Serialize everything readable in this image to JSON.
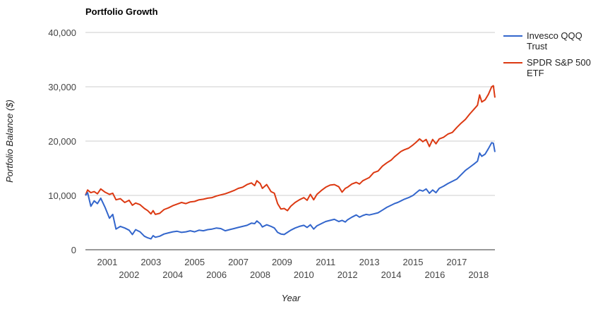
{
  "chart_data": {
    "type": "line",
    "title": "Portfolio Growth",
    "xlabel": "Year",
    "ylabel": "Portfolio Balance ($)",
    "xlim": [
      2000.0,
      2018.75
    ],
    "ylim": [
      0,
      40000
    ],
    "y_ticks": [
      {
        "value": 0,
        "label": "0"
      },
      {
        "value": 10000,
        "label": "10,000"
      },
      {
        "value": 20000,
        "label": "20,000"
      },
      {
        "value": 30000,
        "label": "30,000"
      },
      {
        "value": 40000,
        "label": "40,000"
      }
    ],
    "x_ticks": [
      {
        "value": 2001,
        "label": "2001",
        "row": 1
      },
      {
        "value": 2002,
        "label": "2002",
        "row": 2
      },
      {
        "value": 2003,
        "label": "2003",
        "row": 1
      },
      {
        "value": 2004,
        "label": "2004",
        "row": 2
      },
      {
        "value": 2005,
        "label": "2005",
        "row": 1
      },
      {
        "value": 2006,
        "label": "2006",
        "row": 2
      },
      {
        "value": 2007,
        "label": "2007",
        "row": 1
      },
      {
        "value": 2008,
        "label": "2008",
        "row": 2
      },
      {
        "value": 2009,
        "label": "2009",
        "row": 1
      },
      {
        "value": 2010,
        "label": "2010",
        "row": 2
      },
      {
        "value": 2011,
        "label": "2011",
        "row": 1
      },
      {
        "value": 2012,
        "label": "2012",
        "row": 2
      },
      {
        "value": 2013,
        "label": "2013",
        "row": 1
      },
      {
        "value": 2014,
        "label": "2014",
        "row": 2
      },
      {
        "value": 2015,
        "label": "2015",
        "row": 1
      },
      {
        "value": 2016,
        "label": "2016",
        "row": 2
      },
      {
        "value": 2017,
        "label": "2017",
        "row": 1
      },
      {
        "value": 2018,
        "label": "2018",
        "row": 2
      }
    ],
    "grid": true,
    "legend_position": "right",
    "series": [
      {
        "name": "Invesco QQQ Trust",
        "name_lines": [
          "Invesco QQQ",
          "Trust"
        ],
        "color": "#3366cc",
        "points": [
          [
            2000.0,
            10000
          ],
          [
            2000.1,
            10500
          ],
          [
            2000.25,
            8000
          ],
          [
            2000.4,
            9000
          ],
          [
            2000.55,
            8500
          ],
          [
            2000.7,
            9500
          ],
          [
            2000.9,
            7800
          ],
          [
            2001.1,
            5800
          ],
          [
            2001.25,
            6500
          ],
          [
            2001.4,
            3800
          ],
          [
            2001.6,
            4300
          ],
          [
            2001.8,
            4000
          ],
          [
            2002.0,
            3600
          ],
          [
            2002.15,
            2800
          ],
          [
            2002.3,
            3700
          ],
          [
            2002.5,
            3300
          ],
          [
            2002.7,
            2500
          ],
          [
            2002.85,
            2200
          ],
          [
            2003.0,
            2000
          ],
          [
            2003.1,
            2600
          ],
          [
            2003.2,
            2300
          ],
          [
            2003.4,
            2500
          ],
          [
            2003.6,
            2900
          ],
          [
            2003.8,
            3100
          ],
          [
            2004.0,
            3300
          ],
          [
            2004.2,
            3400
          ],
          [
            2004.4,
            3200
          ],
          [
            2004.6,
            3300
          ],
          [
            2004.8,
            3500
          ],
          [
            2005.0,
            3300
          ],
          [
            2005.2,
            3600
          ],
          [
            2005.4,
            3500
          ],
          [
            2005.6,
            3700
          ],
          [
            2005.8,
            3800
          ],
          [
            2006.0,
            4000
          ],
          [
            2006.2,
            3900
          ],
          [
            2006.4,
            3500
          ],
          [
            2006.6,
            3700
          ],
          [
            2006.8,
            3900
          ],
          [
            2007.0,
            4100
          ],
          [
            2007.2,
            4300
          ],
          [
            2007.4,
            4500
          ],
          [
            2007.6,
            4900
          ],
          [
            2007.75,
            4800
          ],
          [
            2007.85,
            5300
          ],
          [
            2008.0,
            4800
          ],
          [
            2008.1,
            4200
          ],
          [
            2008.3,
            4600
          ],
          [
            2008.5,
            4300
          ],
          [
            2008.65,
            4000
          ],
          [
            2008.8,
            3200
          ],
          [
            2008.95,
            2900
          ],
          [
            2009.1,
            2800
          ],
          [
            2009.25,
            3200
          ],
          [
            2009.4,
            3600
          ],
          [
            2009.6,
            4000
          ],
          [
            2009.8,
            4300
          ],
          [
            2010.0,
            4500
          ],
          [
            2010.15,
            4100
          ],
          [
            2010.3,
            4600
          ],
          [
            2010.45,
            3800
          ],
          [
            2010.6,
            4400
          ],
          [
            2010.8,
            4800
          ],
          [
            2011.0,
            5200
          ],
          [
            2011.2,
            5400
          ],
          [
            2011.4,
            5600
          ],
          [
            2011.6,
            5200
          ],
          [
            2011.75,
            5400
          ],
          [
            2011.9,
            5100
          ],
          [
            2012.0,
            5500
          ],
          [
            2012.2,
            6000
          ],
          [
            2012.4,
            6400
          ],
          [
            2012.55,
            6000
          ],
          [
            2012.7,
            6300
          ],
          [
            2012.85,
            6500
          ],
          [
            2013.0,
            6400
          ],
          [
            2013.2,
            6600
          ],
          [
            2013.4,
            6800
          ],
          [
            2013.6,
            7300
          ],
          [
            2013.8,
            7800
          ],
          [
            2014.0,
            8200
          ],
          [
            2014.15,
            8500
          ],
          [
            2014.3,
            8700
          ],
          [
            2014.45,
            9000
          ],
          [
            2014.6,
            9300
          ],
          [
            2014.8,
            9600
          ],
          [
            2015.0,
            10000
          ],
          [
            2015.15,
            10500
          ],
          [
            2015.3,
            11000
          ],
          [
            2015.45,
            10800
          ],
          [
            2015.6,
            11200
          ],
          [
            2015.75,
            10400
          ],
          [
            2015.9,
            11000
          ],
          [
            2016.05,
            10500
          ],
          [
            2016.2,
            11300
          ],
          [
            2016.4,
            11700
          ],
          [
            2016.6,
            12200
          ],
          [
            2016.8,
            12600
          ],
          [
            2017.0,
            13000
          ],
          [
            2017.2,
            13800
          ],
          [
            2017.4,
            14600
          ],
          [
            2017.6,
            15200
          ],
          [
            2017.8,
            15800
          ],
          [
            2017.95,
            16300
          ],
          [
            2018.05,
            17800
          ],
          [
            2018.15,
            17200
          ],
          [
            2018.3,
            17600
          ],
          [
            2018.45,
            18600
          ],
          [
            2018.6,
            19700
          ],
          [
            2018.68,
            19600
          ],
          [
            2018.75,
            18000
          ]
        ]
      },
      {
        "name": "SPDR S&P 500 ETF",
        "name_lines": [
          "SPDR S&P 500",
          "ETF"
        ],
        "color": "#dc3912",
        "points": [
          [
            2000.0,
            10000
          ],
          [
            2000.1,
            11000
          ],
          [
            2000.25,
            10500
          ],
          [
            2000.4,
            10700
          ],
          [
            2000.55,
            10300
          ],
          [
            2000.7,
            11200
          ],
          [
            2000.9,
            10600
          ],
          [
            2001.1,
            10200
          ],
          [
            2001.25,
            10400
          ],
          [
            2001.4,
            9200
          ],
          [
            2001.6,
            9400
          ],
          [
            2001.8,
            8700
          ],
          [
            2002.0,
            9100
          ],
          [
            2002.15,
            8200
          ],
          [
            2002.3,
            8600
          ],
          [
            2002.5,
            8300
          ],
          [
            2002.7,
            7600
          ],
          [
            2002.85,
            7200
          ],
          [
            2003.0,
            6600
          ],
          [
            2003.1,
            7200
          ],
          [
            2003.2,
            6500
          ],
          [
            2003.4,
            6700
          ],
          [
            2003.6,
            7400
          ],
          [
            2003.8,
            7700
          ],
          [
            2004.0,
            8100
          ],
          [
            2004.2,
            8400
          ],
          [
            2004.4,
            8700
          ],
          [
            2004.6,
            8500
          ],
          [
            2004.8,
            8800
          ],
          [
            2005.0,
            8900
          ],
          [
            2005.2,
            9200
          ],
          [
            2005.4,
            9300
          ],
          [
            2005.6,
            9500
          ],
          [
            2005.8,
            9600
          ],
          [
            2006.0,
            9900
          ],
          [
            2006.2,
            10100
          ],
          [
            2006.4,
            10300
          ],
          [
            2006.6,
            10600
          ],
          [
            2006.8,
            10900
          ],
          [
            2007.0,
            11300
          ],
          [
            2007.2,
            11500
          ],
          [
            2007.4,
            12000
          ],
          [
            2007.6,
            12300
          ],
          [
            2007.75,
            11800
          ],
          [
            2007.85,
            12700
          ],
          [
            2008.0,
            12200
          ],
          [
            2008.1,
            11300
          ],
          [
            2008.3,
            12000
          ],
          [
            2008.5,
            10700
          ],
          [
            2008.65,
            10400
          ],
          [
            2008.8,
            8500
          ],
          [
            2008.95,
            7500
          ],
          [
            2009.1,
            7600
          ],
          [
            2009.25,
            7200
          ],
          [
            2009.4,
            8000
          ],
          [
            2009.6,
            8700
          ],
          [
            2009.8,
            9200
          ],
          [
            2010.0,
            9600
          ],
          [
            2010.15,
            9100
          ],
          [
            2010.3,
            10200
          ],
          [
            2010.45,
            9200
          ],
          [
            2010.6,
            10200
          ],
          [
            2010.8,
            10900
          ],
          [
            2011.0,
            11500
          ],
          [
            2011.2,
            11900
          ],
          [
            2011.4,
            12000
          ],
          [
            2011.6,
            11600
          ],
          [
            2011.75,
            10600
          ],
          [
            2011.9,
            11300
          ],
          [
            2012.0,
            11500
          ],
          [
            2012.2,
            12100
          ],
          [
            2012.4,
            12400
          ],
          [
            2012.55,
            12100
          ],
          [
            2012.7,
            12700
          ],
          [
            2012.85,
            13000
          ],
          [
            2013.0,
            13300
          ],
          [
            2013.2,
            14200
          ],
          [
            2013.4,
            14500
          ],
          [
            2013.6,
            15400
          ],
          [
            2013.8,
            16000
          ],
          [
            2014.0,
            16500
          ],
          [
            2014.15,
            17100
          ],
          [
            2014.3,
            17600
          ],
          [
            2014.45,
            18100
          ],
          [
            2014.6,
            18400
          ],
          [
            2014.8,
            18700
          ],
          [
            2015.0,
            19300
          ],
          [
            2015.15,
            19800
          ],
          [
            2015.3,
            20400
          ],
          [
            2015.45,
            19900
          ],
          [
            2015.6,
            20300
          ],
          [
            2015.75,
            19000
          ],
          [
            2015.9,
            20300
          ],
          [
            2016.05,
            19500
          ],
          [
            2016.2,
            20400
          ],
          [
            2016.4,
            20700
          ],
          [
            2016.6,
            21300
          ],
          [
            2016.8,
            21600
          ],
          [
            2017.0,
            22500
          ],
          [
            2017.2,
            23300
          ],
          [
            2017.4,
            24000
          ],
          [
            2017.6,
            25000
          ],
          [
            2017.8,
            25900
          ],
          [
            2017.95,
            26600
          ],
          [
            2018.05,
            28500
          ],
          [
            2018.15,
            27200
          ],
          [
            2018.3,
            27600
          ],
          [
            2018.45,
            28600
          ],
          [
            2018.6,
            30000
          ],
          [
            2018.68,
            30200
          ],
          [
            2018.75,
            28000
          ]
        ]
      }
    ]
  }
}
